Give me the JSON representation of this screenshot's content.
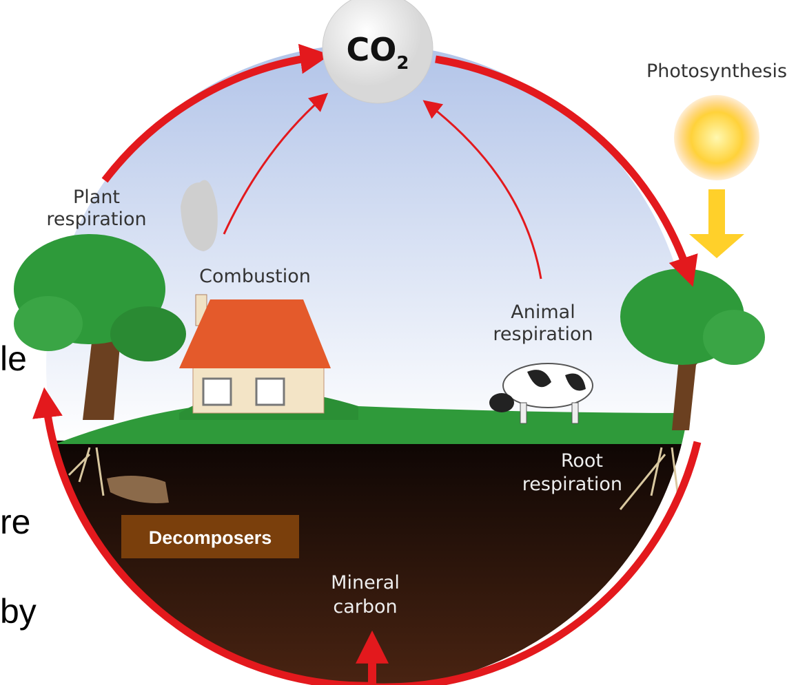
{
  "co2": {
    "main": "CO",
    "sub": "2"
  },
  "labels": {
    "photosynthesis": "Photosynthesis",
    "plant_respiration": [
      "Plant",
      "respiration"
    ],
    "combustion": "Combustion",
    "animal_respiration": [
      "Animal",
      "respiration"
    ],
    "root_respiration": [
      "Root",
      "respiration"
    ],
    "decomposers": "Decomposers",
    "mineral_carbon": [
      "Mineral",
      "carbon"
    ]
  },
  "background_text": [
    "le",
    "re",
    "by"
  ]
}
